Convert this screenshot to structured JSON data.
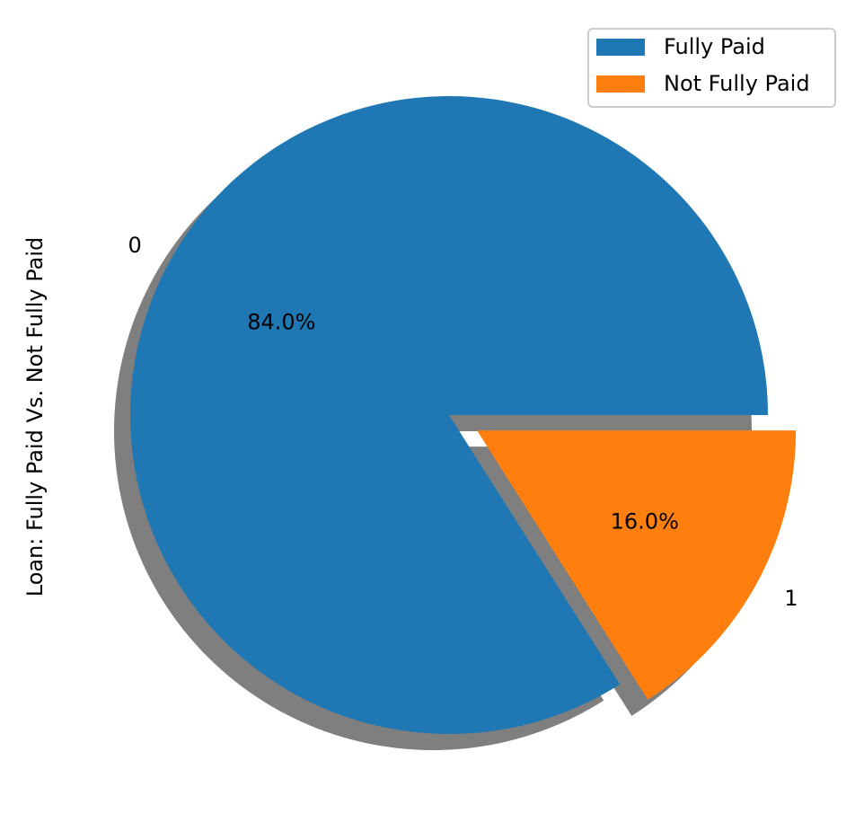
{
  "chart_data": {
    "type": "pie",
    "ylabel": "Loan: Fully Paid Vs. Not Fully Paid",
    "slices": [
      {
        "label": "0",
        "value": 84.0,
        "pct_label": "84.0%",
        "color": "#1f77b4",
        "exploded": false
      },
      {
        "label": "1",
        "value": 16.0,
        "pct_label": "16.0%",
        "color": "#ff7f0e",
        "exploded": true
      }
    ],
    "legend": {
      "placement": "top-right",
      "entries": [
        {
          "name": "Fully Paid",
          "color": "#1f77b4"
        },
        {
          "name": "Not Fully Paid",
          "color": "#ff7f0e"
        }
      ]
    },
    "shadow": true,
    "start_angle_deg": 0
  }
}
